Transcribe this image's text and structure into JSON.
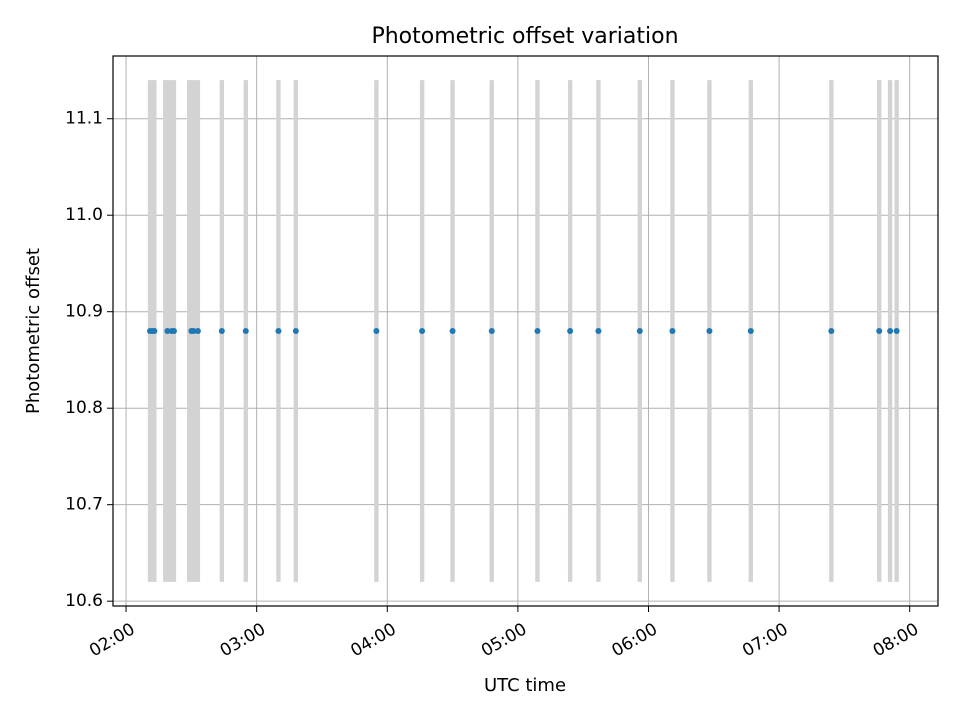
{
  "chart_data": {
    "type": "scatter",
    "title": "Photometric offset variation",
    "xlabel": "UTC time",
    "ylabel": "Photometric offset",
    "x_tick_labels": [
      "02:00",
      "03:00",
      "04:00",
      "05:00",
      "06:00",
      "07:00",
      "08:00"
    ],
    "y_tick_labels": [
      "10.6",
      "10.7",
      "10.8",
      "10.9",
      "11.0",
      "11.1"
    ],
    "xlim": [
      "01:54",
      "08:13"
    ],
    "ylim": [
      10.595,
      11.165
    ],
    "grid": true,
    "series": [
      {
        "x": [
          "02:11",
          "02:12",
          "02:13",
          "02:19",
          "02:21",
          "02:22",
          "02:30",
          "02:31",
          "02:33",
          "02:44",
          "02:55",
          "03:10",
          "03:18",
          "03:55",
          "04:16",
          "04:30",
          "04:48",
          "05:09",
          "05:24",
          "05:37",
          "05:56",
          "06:11",
          "06:28",
          "06:47",
          "07:24",
          "07:46",
          "07:51",
          "07:54"
        ],
        "y": [
          10.88,
          10.88,
          10.88,
          10.88,
          10.88,
          10.88,
          10.88,
          10.88,
          10.88,
          10.88,
          10.88,
          10.88,
          10.88,
          10.88,
          10.88,
          10.88,
          10.88,
          10.88,
          10.88,
          10.88,
          10.88,
          10.88,
          10.88,
          10.88,
          10.88,
          10.88,
          10.88,
          10.88
        ],
        "color": "#1f77b4"
      }
    ],
    "shaded_bands": {
      "color": "#d3d3d3",
      "y_range": [
        10.62,
        11.14
      ],
      "intervals": [
        [
          "02:10",
          "02:14"
        ],
        [
          "02:17",
          "02:23"
        ],
        [
          "02:28",
          "02:34"
        ],
        [
          "02:43",
          "02:45"
        ],
        [
          "02:54",
          "02:56"
        ],
        [
          "03:09",
          "03:11"
        ],
        [
          "03:17",
          "03:19"
        ],
        [
          "03:54",
          "03:56"
        ],
        [
          "04:15",
          "04:17"
        ],
        [
          "04:29",
          "04:31"
        ],
        [
          "04:47",
          "04:49"
        ],
        [
          "05:08",
          "05:10"
        ],
        [
          "05:23",
          "05:25"
        ],
        [
          "05:36",
          "05:38"
        ],
        [
          "05:55",
          "05:57"
        ],
        [
          "06:10",
          "06:12"
        ],
        [
          "06:27",
          "06:29"
        ],
        [
          "06:46",
          "06:48"
        ],
        [
          "07:23",
          "07:25"
        ],
        [
          "07:45",
          "07:47"
        ],
        [
          "07:50",
          "07:52"
        ],
        [
          "07:53",
          "07:55"
        ]
      ]
    }
  }
}
